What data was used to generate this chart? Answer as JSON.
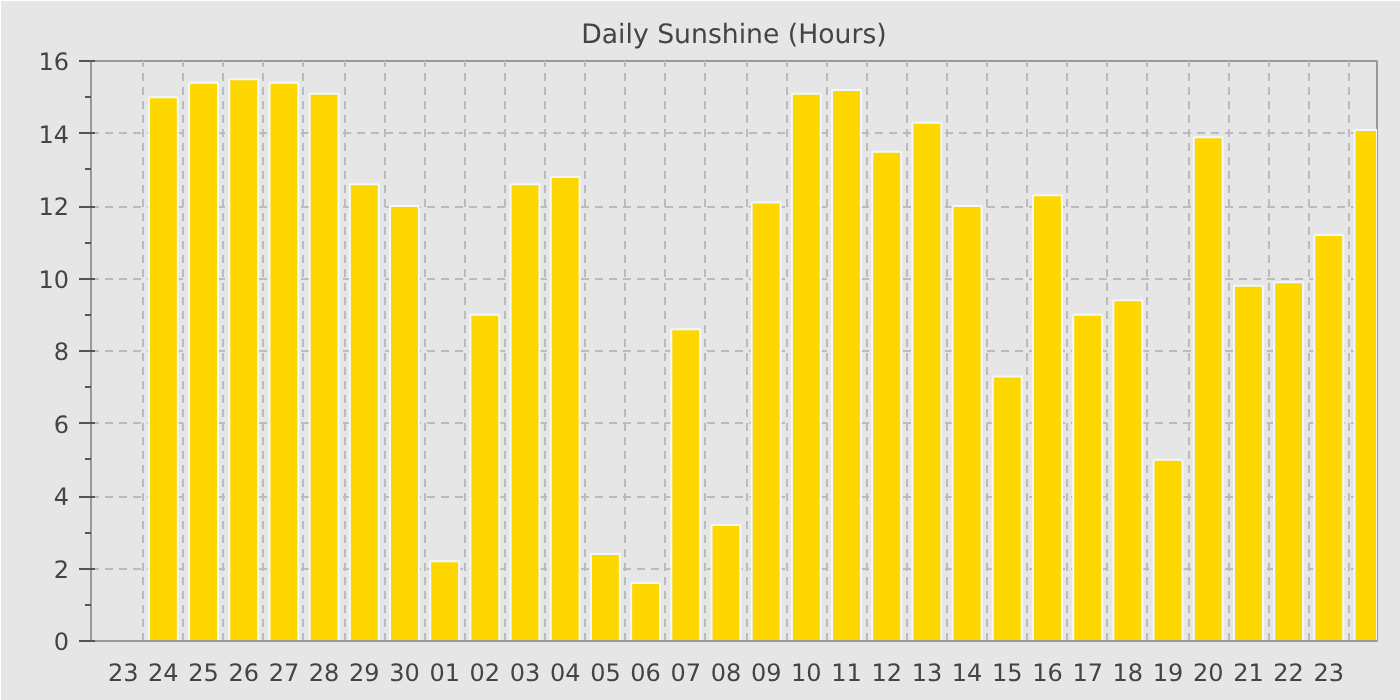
{
  "chart_data": {
    "type": "bar",
    "title": "Daily Sunshine (Hours)",
    "categories": [
      "23",
      "24",
      "25",
      "26",
      "27",
      "28",
      "29",
      "30",
      "01",
      "02",
      "03",
      "04",
      "05",
      "06",
      "07",
      "08",
      "09",
      "10",
      "11",
      "12",
      "13",
      "14",
      "15",
      "16",
      "17",
      "18",
      "19",
      "20",
      "21",
      "22",
      "23",
      null
    ],
    "values": [
      null,
      15.0,
      15.4,
      15.5,
      15.4,
      15.1,
      12.6,
      12.0,
      2.2,
      9.0,
      12.6,
      12.8,
      2.4,
      1.6,
      8.6,
      3.2,
      12.1,
      15.1,
      15.2,
      13.5,
      14.3,
      12.0,
      7.3,
      12.3,
      9.0,
      9.4,
      5.0,
      13.9,
      9.8,
      9.9,
      11.2,
      14.1
    ],
    "color": "#ffd700",
    "ylim": [
      0,
      16
    ],
    "yticks": [
      0,
      2,
      4,
      6,
      8,
      10,
      12,
      14,
      16
    ],
    "grid": true
  }
}
